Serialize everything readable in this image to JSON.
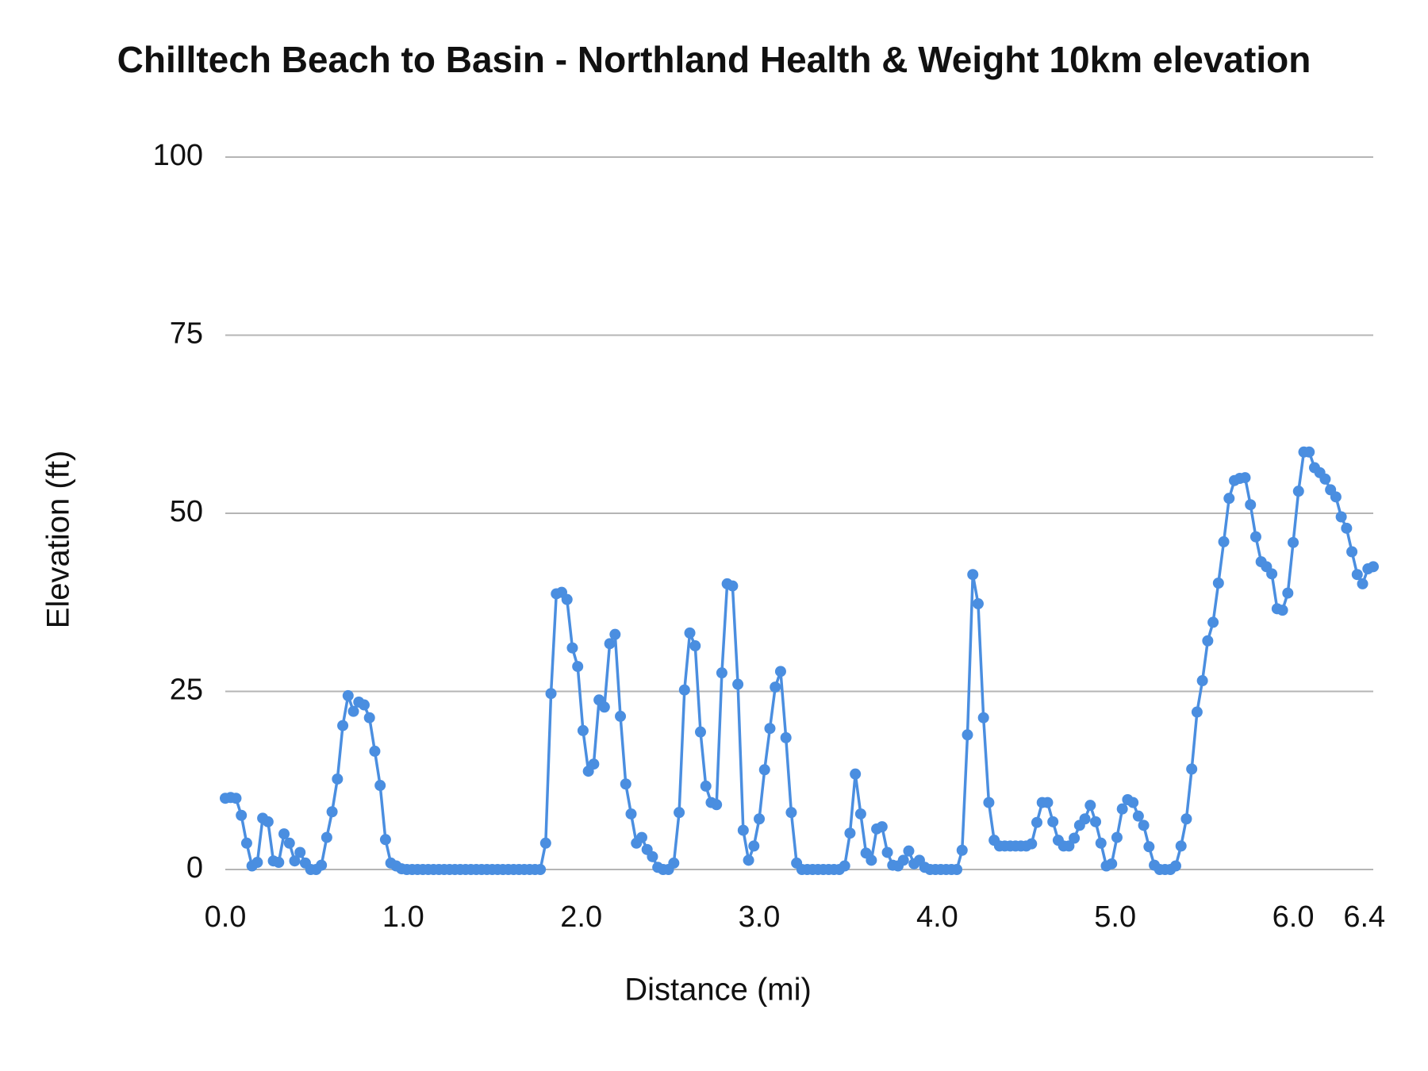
{
  "chart_data": {
    "type": "line",
    "title": "Chilltech Beach to Basin - Northland Health & Weight 10km elevation",
    "x_label": "Distance (mi)",
    "y_label": "Elevation (ft)",
    "x": [
      0,
      0.03,
      0.06,
      0.09,
      0.12,
      0.15,
      0.18,
      0.21,
      0.24,
      0.27,
      0.3,
      0.33,
      0.36,
      0.39,
      0.42,
      0.45,
      0.48,
      0.51,
      0.54,
      0.57,
      0.6,
      0.63,
      0.66,
      0.69,
      0.72,
      0.75,
      0.78,
      0.81,
      0.84,
      0.87,
      0.9,
      0.93,
      0.96,
      0.99,
      1.02,
      1.05,
      1.08,
      1.11,
      1.14,
      1.17,
      1.2,
      1.23,
      1.26,
      1.29,
      1.32,
      1.35,
      1.38,
      1.41,
      1.44,
      1.47,
      1.5,
      1.53,
      1.56,
      1.59,
      1.62,
      1.65,
      1.68,
      1.71,
      1.74,
      1.77,
      1.8,
      1.83,
      1.86,
      1.89,
      1.92,
      1.95,
      1.98,
      2.01,
      2.04,
      2.07,
      2.1,
      2.13,
      2.16,
      2.19,
      2.22,
      2.25,
      2.28,
      2.31,
      2.34,
      2.37,
      2.4,
      2.43,
      2.46,
      2.49,
      2.52,
      2.55,
      2.58,
      2.61,
      2.64,
      2.67,
      2.7,
      2.73,
      2.76,
      2.79,
      2.82,
      2.85,
      2.88,
      2.91,
      2.94,
      2.97,
      3,
      3.03,
      3.06,
      3.09,
      3.12,
      3.15,
      3.18,
      3.21,
      3.24,
      3.27,
      3.3,
      3.33,
      3.36,
      3.39,
      3.42,
      3.45,
      3.48,
      3.51,
      3.54,
      3.57,
      3.6,
      3.63,
      3.66,
      3.69,
      3.72,
      3.75,
      3.78,
      3.81,
      3.84,
      3.87,
      3.9,
      3.93,
      3.96,
      3.99,
      4.02,
      4.05,
      4.08,
      4.11,
      4.14,
      4.17,
      4.2,
      4.23,
      4.26,
      4.29,
      4.32,
      4.35,
      4.38,
      4.41,
      4.44,
      4.47,
      4.5,
      4.53,
      4.56,
      4.59,
      4.62,
      4.65,
      4.68,
      4.71,
      4.74,
      4.77,
      4.8,
      4.83,
      4.86,
      4.89,
      4.92,
      4.95,
      4.98,
      5.01,
      5.04,
      5.07,
      5.1,
      5.13,
      5.16,
      5.19,
      5.22,
      5.25,
      5.28,
      5.31,
      5.34,
      5.37,
      5.4,
      5.43,
      5.46,
      5.49,
      5.52,
      5.55,
      5.58,
      5.61,
      5.64,
      5.67,
      5.7,
      5.73,
      5.76,
      5.79,
      5.82,
      5.85,
      5.88,
      5.91,
      5.94,
      5.97,
      6,
      6.03,
      6.06,
      6.09,
      6.12,
      6.15,
      6.18,
      6.21,
      6.24,
      6.27,
      6.3,
      6.33,
      6.36,
      6.39,
      6.42,
      6.45
    ],
    "series": [
      {
        "color": "#4a8ee0",
        "values": [
          10,
          10.1,
          10,
          7.6,
          3.7,
          0.5,
          1,
          7.2,
          6.7,
          1.2,
          1,
          5,
          3.7,
          1.2,
          2.4,
          0.9,
          0,
          0,
          0.6,
          4.5,
          8.1,
          12.7,
          20.2,
          24.4,
          22.2,
          23.5,
          23.1,
          21.3,
          16.6,
          11.8,
          4.2,
          0.9,
          0.5,
          0.1,
          0,
          0,
          0,
          0,
          0,
          0,
          0,
          0,
          0,
          0,
          0,
          0,
          0,
          0,
          0,
          0,
          0,
          0,
          0,
          0,
          0,
          0,
          0,
          0,
          0,
          0,
          3.7,
          24.7,
          38.7,
          38.9,
          37.9,
          31.1,
          28.5,
          19.5,
          13.8,
          14.8,
          23.8,
          22.8,
          31.7,
          33,
          21.5,
          12,
          7.8,
          3.7,
          4.5,
          2.8,
          1.8,
          0.3,
          0,
          0,
          0.9,
          8,
          25.2,
          33.2,
          31.4,
          19.3,
          11.7,
          9.4,
          9.1,
          27.6,
          40.1,
          39.8,
          26,
          5.5,
          1.3,
          3.3,
          7.1,
          14,
          19.8,
          25.6,
          27.8,
          18.5,
          8,
          0.9,
          0,
          0,
          0,
          0,
          0,
          0,
          0,
          0,
          0.5,
          5.1,
          13.4,
          7.8,
          2.3,
          1.3,
          5.7,
          6,
          2.4,
          0.6,
          0.5,
          1.3,
          2.6,
          0.8,
          1.3,
          0.3,
          0,
          0,
          0,
          0,
          0,
          0,
          2.7,
          18.9,
          41.4,
          37.3,
          21.3,
          9.4,
          4.1,
          3.3,
          3.3,
          3.3,
          3.3,
          3.3,
          3.3,
          3.6,
          6.6,
          9.4,
          9.4,
          6.7,
          4.1,
          3.3,
          3.3,
          4.4,
          6.2,
          7.1,
          9,
          6.7,
          3.7,
          0.5,
          0.8,
          4.5,
          8.5,
          9.8,
          9.4,
          7.5,
          6.2,
          3.2,
          0.6,
          0,
          0,
          0,
          0.5,
          3.3,
          7.1,
          14.1,
          22.1,
          26.5,
          32.1,
          34.7,
          40.2,
          46,
          52.1,
          54.6,
          54.9,
          55,
          51.2,
          46.7,
          43.2,
          42.5,
          41.5,
          36.6,
          36.4,
          38.8,
          45.9,
          53.1,
          58.6,
          58.6,
          56.4,
          55.7,
          54.8,
          53.3,
          52.3,
          49.5,
          47.9,
          44.6,
          41.4,
          40.1,
          42.2,
          42.5
        ]
      }
    ],
    "xlim": [
      0,
      6.45
    ],
    "xticks": [
      {
        "value": 0,
        "label": "0.0"
      },
      {
        "value": 1,
        "label": "1.0"
      },
      {
        "value": 2,
        "label": "2.0"
      },
      {
        "value": 3,
        "label": "3.0"
      },
      {
        "value": 4,
        "label": "4.0"
      },
      {
        "value": 5,
        "label": "5.0"
      },
      {
        "value": 6,
        "label": "6.0"
      },
      6.4
    ],
    "ylim": [
      0,
      100
    ],
    "yticks": [
      0,
      25,
      50,
      75,
      100
    ],
    "grid": true,
    "markers": true
  }
}
